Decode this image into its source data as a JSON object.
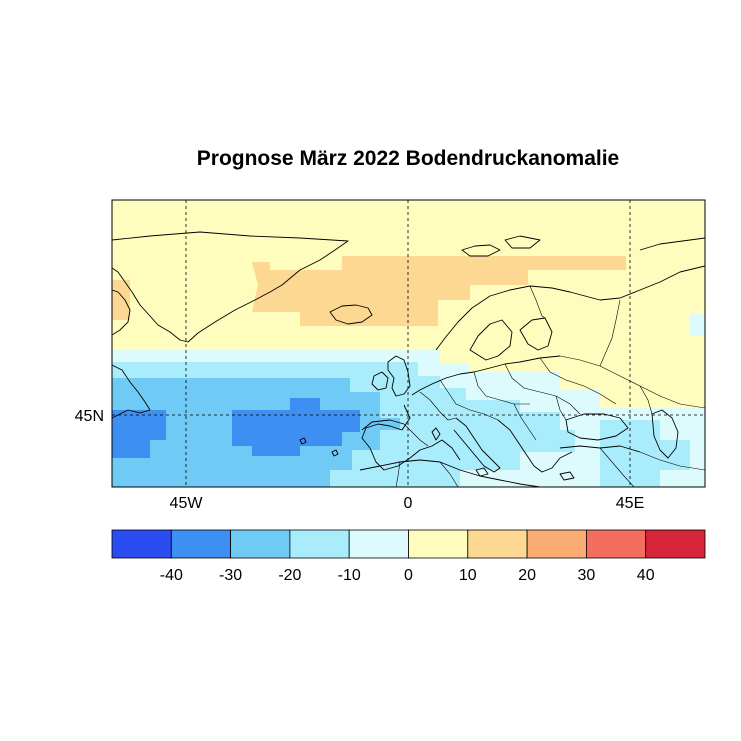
{
  "title": "Prognose März 2022 Bodendruckanomalie",
  "map": {
    "lon_ticks": [
      {
        "value": -45,
        "label": "45W"
      },
      {
        "value": 0,
        "label": "0"
      },
      {
        "value": 45,
        "label": "45E"
      }
    ],
    "lat_ticks": [
      {
        "value": 45,
        "label": "45N"
      }
    ],
    "lon_range": [
      -60,
      60
    ],
    "lat_range": [
      30,
      88
    ]
  },
  "colorbar": {
    "bins": [
      {
        "from": -50,
        "to": -40,
        "color": "#2b4cf0"
      },
      {
        "from": -40,
        "to": -30,
        "color": "#3d8ff2"
      },
      {
        "from": -30,
        "to": -20,
        "color": "#6fcbf5"
      },
      {
        "from": -20,
        "to": -10,
        "color": "#a9ecfb"
      },
      {
        "from": -10,
        "to": 0,
        "color": "#ddfbfd"
      },
      {
        "from": 0,
        "to": 10,
        "color": "#fffdbd"
      },
      {
        "from": 10,
        "to": 20,
        "color": "#fdd892"
      },
      {
        "from": 20,
        "to": 30,
        "color": "#fbac73"
      },
      {
        "from": 30,
        "to": 40,
        "color": "#f56d5f"
      },
      {
        "from": 40,
        "to": 50,
        "color": "#d7263a"
      }
    ],
    "tick_labels": [
      "-40",
      "-30",
      "-20",
      "-10",
      "0",
      "10",
      "20",
      "30",
      "40"
    ]
  }
}
